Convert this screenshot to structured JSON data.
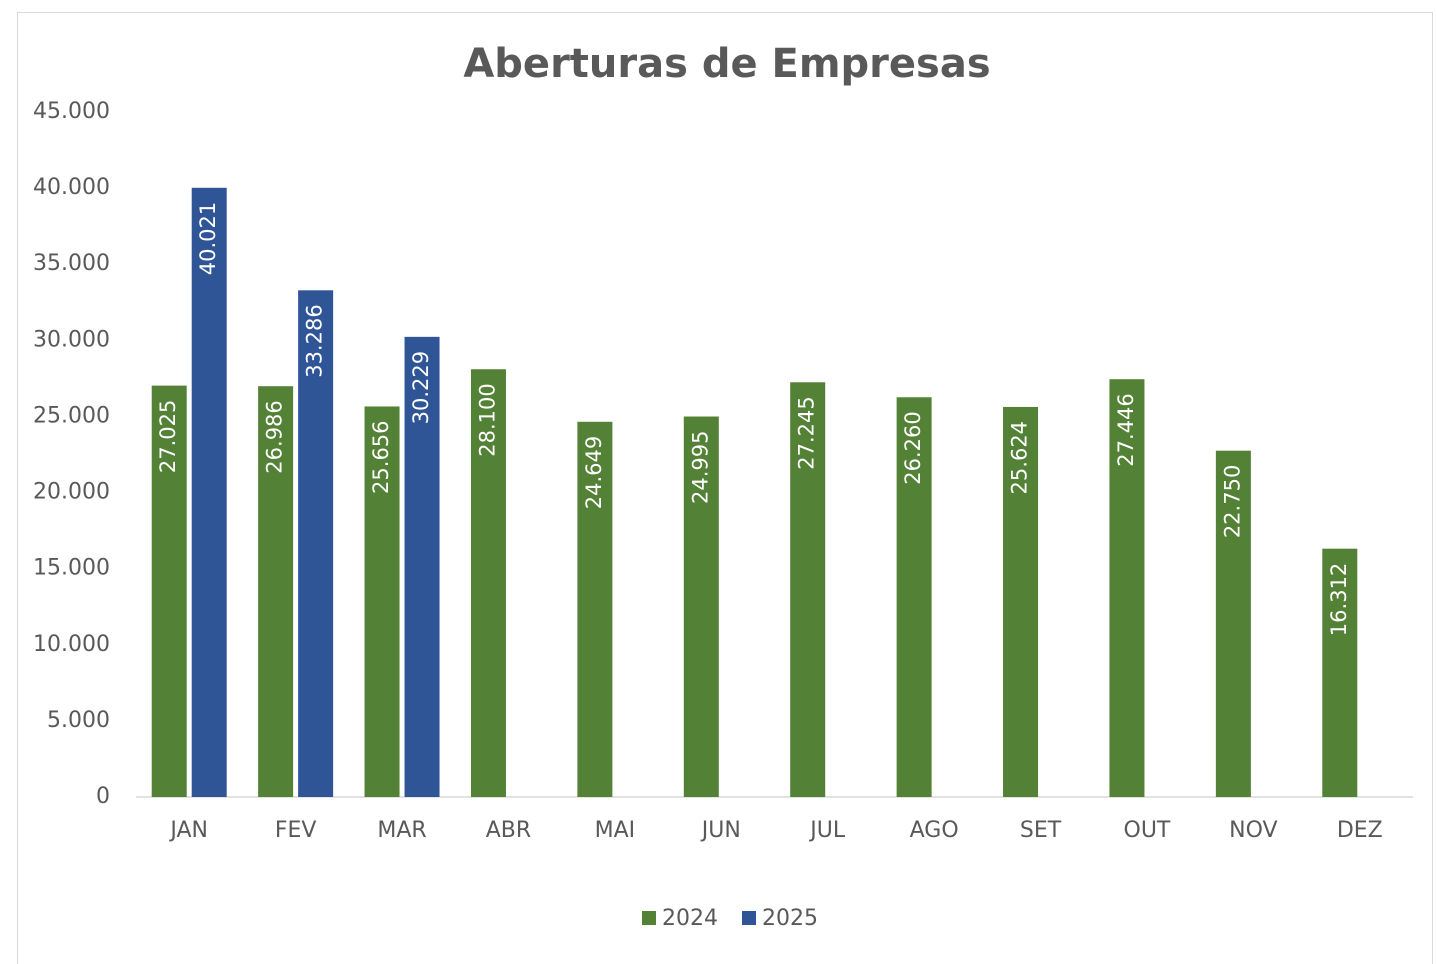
{
  "chart_data": {
    "type": "bar",
    "title": "Aberturas de Empresas",
    "categories": [
      "JAN",
      "FEV",
      "MAR",
      "ABR",
      "MAI",
      "JUN",
      "JUL",
      "AGO",
      "SET",
      "OUT",
      "NOV",
      "DEZ"
    ],
    "series": [
      {
        "name": "2024",
        "color": "#538135",
        "values": [
          27025,
          26986,
          25656,
          28100,
          24649,
          24995,
          27245,
          26260,
          25624,
          27446,
          22750,
          16312
        ],
        "value_labels": [
          "27.025",
          "26.986",
          "25.656",
          "28.100",
          "24.649",
          "24.995",
          "27.245",
          "26.260",
          "25.624",
          "27.446",
          "22.750",
          "16.312"
        ]
      },
      {
        "name": "2025",
        "color": "#2f5597",
        "values": [
          40021,
          33286,
          30229,
          null,
          null,
          null,
          null,
          null,
          null,
          null,
          null,
          null
        ],
        "value_labels": [
          "40.021",
          "33.286",
          "30.229",
          null,
          null,
          null,
          null,
          null,
          null,
          null,
          null,
          null
        ]
      }
    ],
    "ylim": [
      0,
      45000
    ],
    "yticks": [
      0,
      {
        "value": 5000,
        "label": "5.000"
      },
      {
        "value": 10000,
        "label": "10.000"
      },
      {
        "value": 15000,
        "label": "15.000"
      },
      {
        "value": 20000,
        "label": "20.000"
      },
      {
        "value": 25000,
        "label": "25.000"
      },
      {
        "value": 30000,
        "label": "30.000"
      },
      {
        "value": 35000,
        "label": "35.000"
      },
      {
        "value": 40000,
        "label": "40.000"
      },
      {
        "value": 45000,
        "label": "45.000"
      }
    ],
    "legend": "bottom"
  }
}
